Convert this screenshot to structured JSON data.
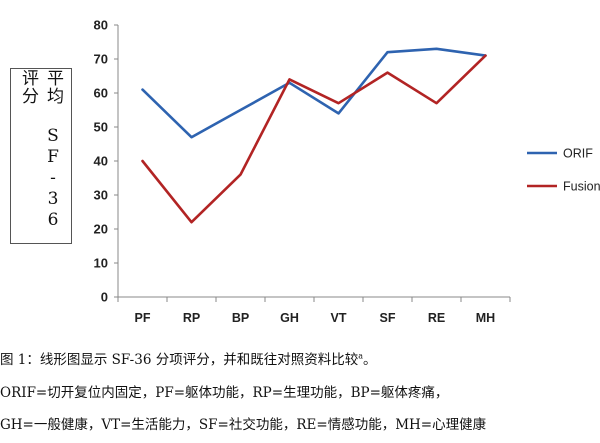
{
  "chart_data": {
    "type": "line",
    "categories": [
      "PF",
      "RP",
      "BP",
      "GH",
      "VT",
      "SF",
      "RE",
      "MH"
    ],
    "series": [
      {
        "name": "ORIF",
        "color": "#2e63b0",
        "values": [
          61,
          47,
          55,
          63,
          54,
          72,
          73,
          71
        ]
      },
      {
        "name": "Fusion",
        "color": "#b22424",
        "values": [
          40,
          22,
          36,
          64,
          57,
          66,
          57,
          71
        ]
      }
    ],
    "ylabel": "平均 SF-36 评分",
    "ylim": [
      0,
      80
    ],
    "yticks": [
      0,
      10,
      20,
      30,
      40,
      50,
      60,
      70,
      80
    ],
    "grid": false,
    "legend": "right"
  },
  "caption": {
    "main": "图 1：线形图显示 SF-36 分项评分，并和既往对照资料比较",
    "main_sup": "a",
    "line1": "ORIF=切开复位内固定，PF=躯体功能，RP=生理功能，BP=躯体疼痛，",
    "line2": "GH=一般健康，VT=生活能力，SF=社交功能，RE=情感功能，MH=心理健康"
  }
}
